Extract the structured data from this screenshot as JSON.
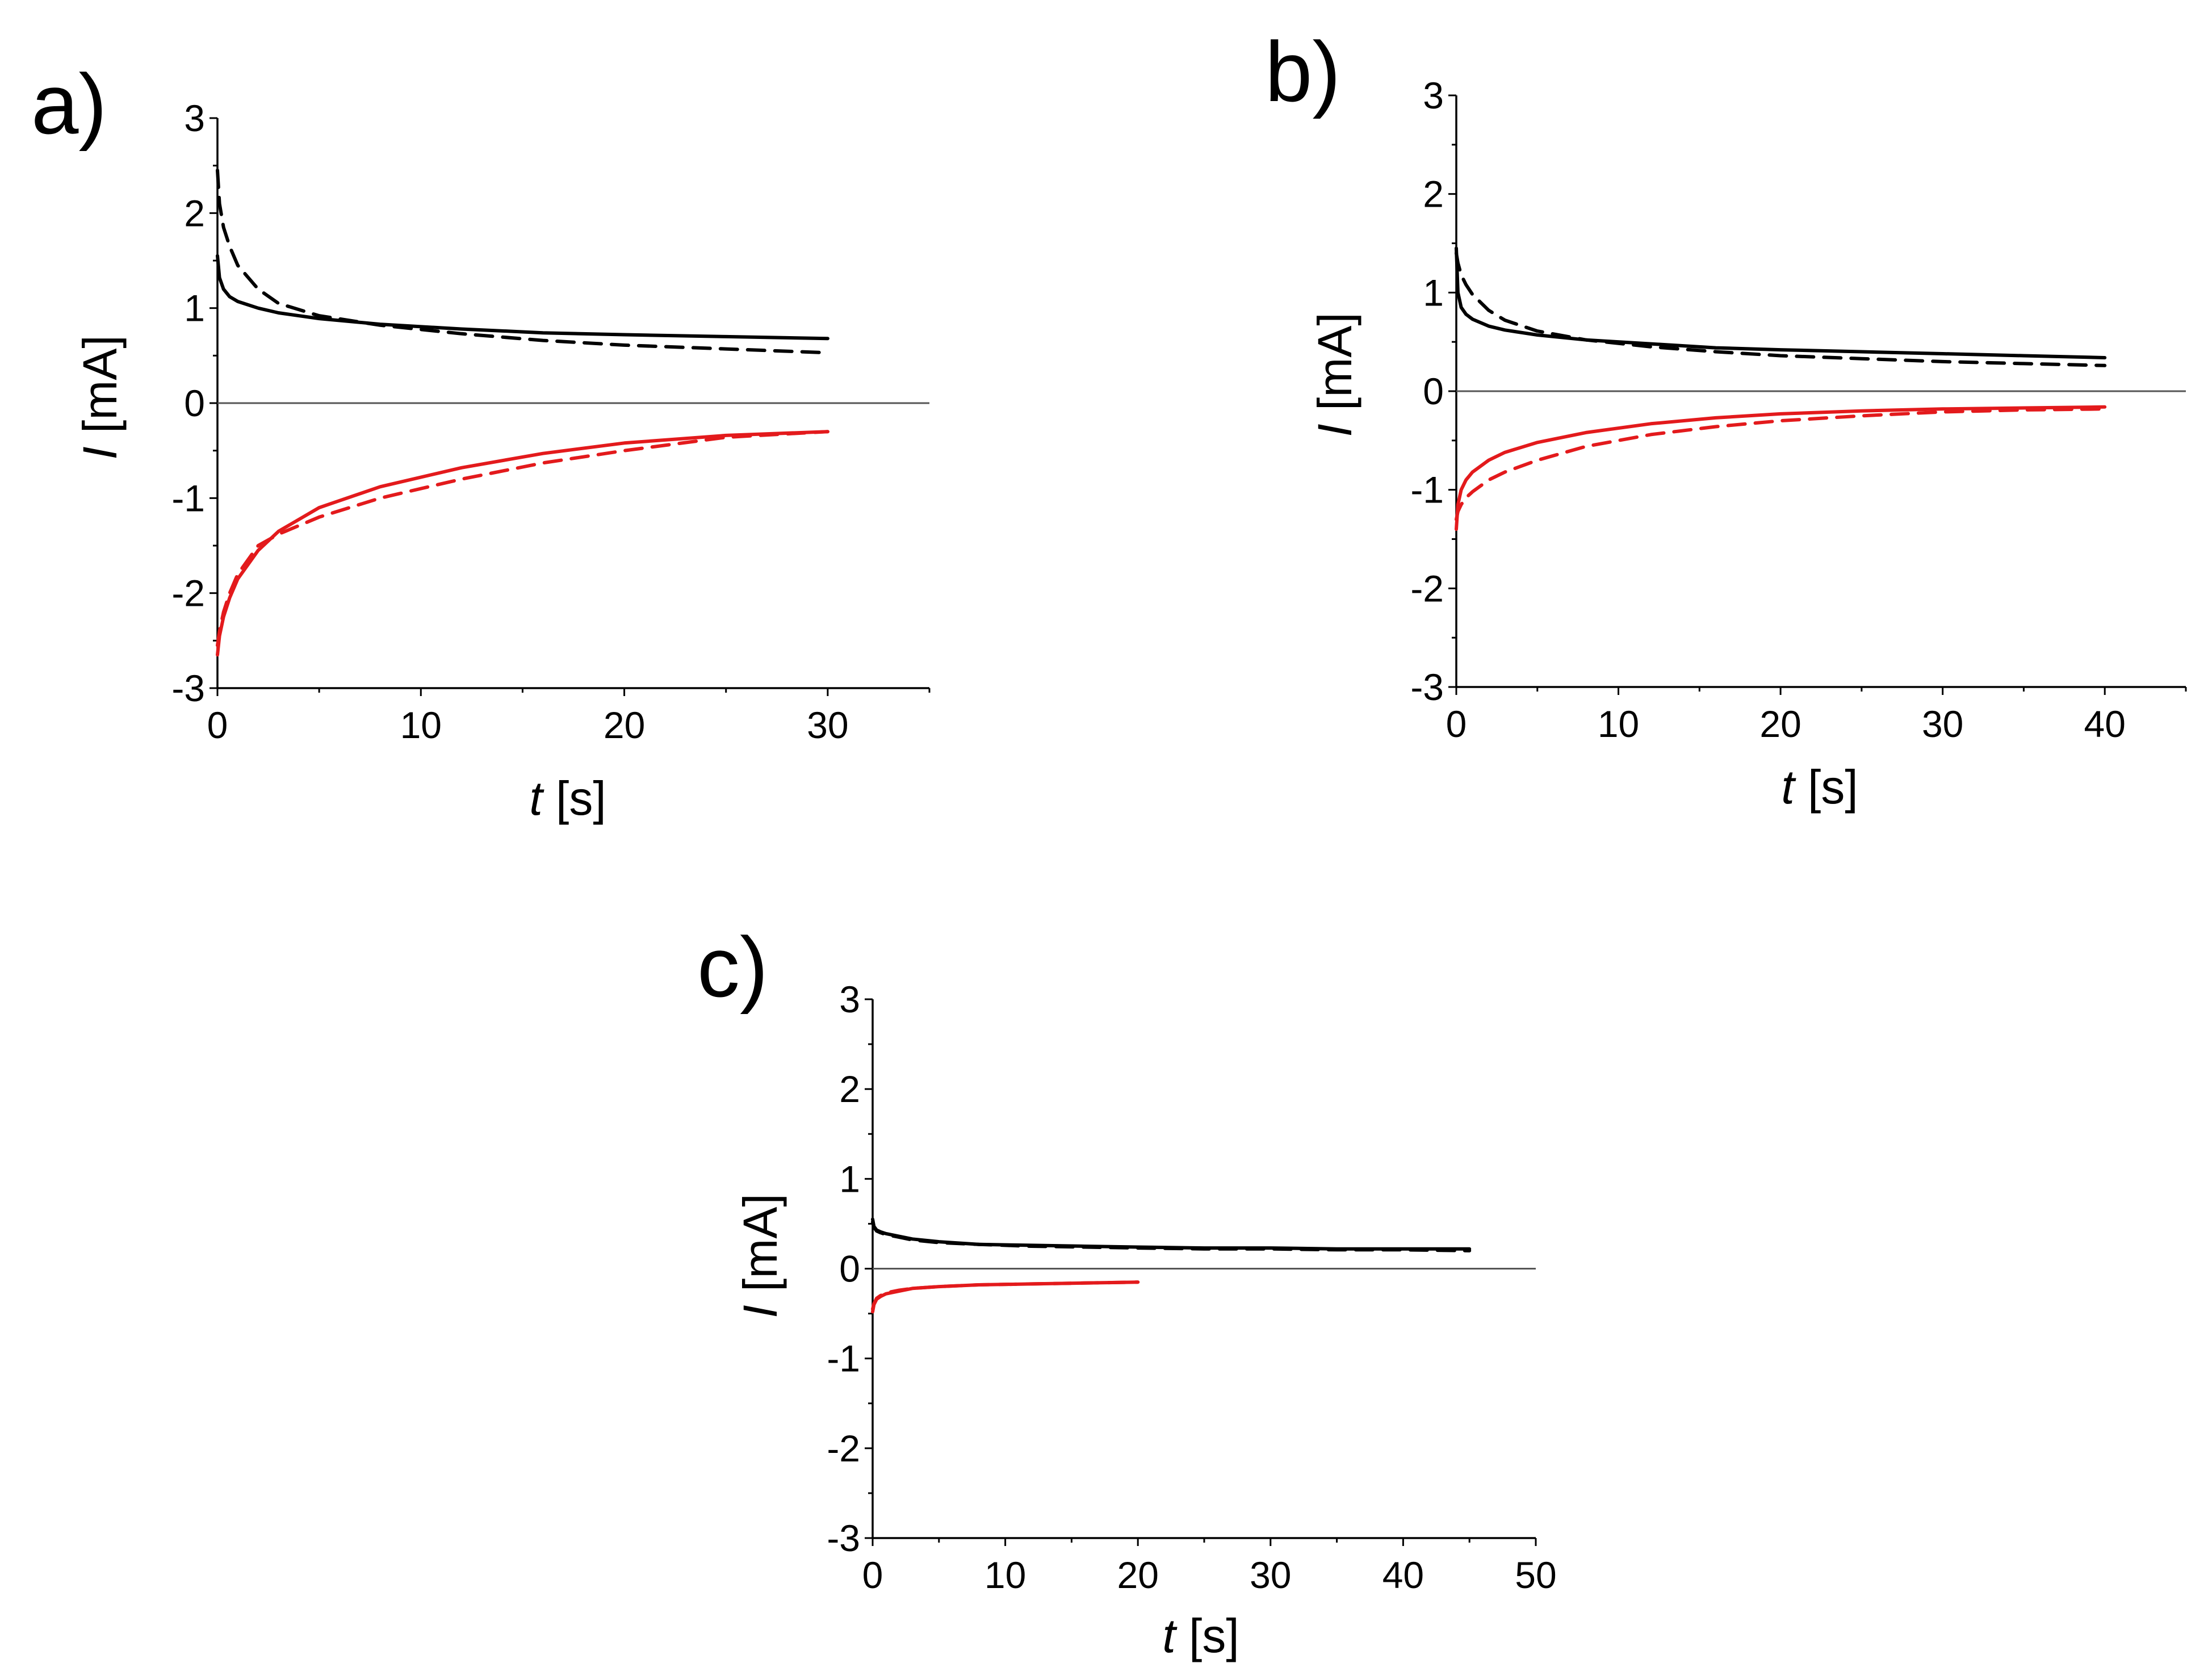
{
  "colors": {
    "black_series": "#000000",
    "red_series": "#e31a1c",
    "axis": "#000000",
    "zero_line": "#555555"
  },
  "chart_data": [
    {
      "type": "line",
      "panel_label": "a)",
      "xlabel_var": "t",
      "xlabel_unit": " [s]",
      "ylabel_var": "I",
      "ylabel_unit": " [mA]",
      "xlim": [
        0,
        35
      ],
      "ylim": [
        -3,
        3
      ],
      "xticks": [
        0,
        10,
        20,
        30
      ],
      "xtick_labels": [
        "0",
        "10",
        "20",
        "30"
      ],
      "yticks": [
        -3,
        -2,
        -1,
        0,
        1,
        2,
        3
      ],
      "ytick_labels": [
        "-3",
        "-2",
        "-1",
        "0",
        "1",
        "2",
        "3"
      ],
      "zero_line": true,
      "series": [
        {
          "name": "black-solid",
          "color": "black",
          "dash": false,
          "x": [
            0,
            0.1,
            0.3,
            0.6,
            1,
            2,
            3,
            5,
            8,
            12,
            16,
            20,
            25,
            30
          ],
          "y": [
            1.55,
            1.32,
            1.2,
            1.12,
            1.07,
            1.0,
            0.95,
            0.89,
            0.83,
            0.78,
            0.74,
            0.72,
            0.7,
            0.68
          ]
        },
        {
          "name": "black-dashed",
          "color": "black",
          "dash": true,
          "x": [
            0,
            0.1,
            0.3,
            0.6,
            1,
            2,
            3,
            5,
            8,
            12,
            16,
            20,
            25,
            30
          ],
          "y": [
            2.45,
            2.1,
            1.85,
            1.65,
            1.45,
            1.2,
            1.05,
            0.92,
            0.82,
            0.73,
            0.66,
            0.61,
            0.57,
            0.53
          ]
        },
        {
          "name": "red-solid",
          "color": "red",
          "dash": false,
          "x": [
            0,
            0.1,
            0.3,
            0.6,
            1,
            2,
            3,
            5,
            8,
            12,
            16,
            20,
            25,
            30
          ],
          "y": [
            -2.65,
            -2.45,
            -2.25,
            -2.05,
            -1.85,
            -1.55,
            -1.35,
            -1.1,
            -0.88,
            -0.68,
            -0.53,
            -0.42,
            -0.34,
            -0.3
          ]
        },
        {
          "name": "red-dashed",
          "color": "red",
          "dash": true,
          "x": [
            0,
            0.1,
            0.3,
            0.6,
            1,
            2,
            3,
            5,
            8,
            12,
            16,
            20,
            25,
            30
          ],
          "y": [
            -2.55,
            -2.4,
            -2.2,
            -2.0,
            -1.8,
            -1.5,
            -1.38,
            -1.2,
            -1.0,
            -0.8,
            -0.63,
            -0.5,
            -0.36,
            -0.3
          ]
        }
      ]
    },
    {
      "type": "line",
      "panel_label": "b)",
      "xlabel_var": "t",
      "xlabel_unit": " [s]",
      "ylabel_var": "I",
      "ylabel_unit": " [mA]",
      "xlim": [
        0,
        45
      ],
      "ylim": [
        -3,
        3
      ],
      "xticks": [
        0,
        10,
        20,
        30,
        40
      ],
      "xtick_labels": [
        "0",
        "10",
        "20",
        "30",
        "40"
      ],
      "yticks": [
        -3,
        -2,
        -1,
        0,
        1,
        2,
        3
      ],
      "ytick_labels": [
        "-3",
        "-2",
        "-1",
        "0",
        "1",
        "2",
        "3"
      ],
      "zero_line": true,
      "series": [
        {
          "name": "black-solid",
          "color": "black",
          "dash": false,
          "x": [
            0,
            0.1,
            0.3,
            0.6,
            1,
            2,
            3,
            5,
            8,
            12,
            16,
            20,
            25,
            30,
            35,
            40
          ],
          "y": [
            1.45,
            1.0,
            0.85,
            0.78,
            0.73,
            0.66,
            0.62,
            0.57,
            0.52,
            0.48,
            0.44,
            0.42,
            0.4,
            0.38,
            0.36,
            0.34
          ]
        },
        {
          "name": "black-dashed",
          "color": "black",
          "dash": true,
          "x": [
            0,
            0.1,
            0.3,
            0.6,
            1,
            2,
            3,
            5,
            8,
            12,
            16,
            20,
            25,
            30,
            35,
            40
          ],
          "y": [
            1.4,
            1.3,
            1.18,
            1.08,
            0.98,
            0.82,
            0.72,
            0.61,
            0.52,
            0.45,
            0.4,
            0.36,
            0.33,
            0.3,
            0.28,
            0.26
          ]
        },
        {
          "name": "red-solid",
          "color": "red",
          "dash": false,
          "x": [
            0,
            0.1,
            0.3,
            0.6,
            1,
            2,
            3,
            5,
            8,
            12,
            16,
            20,
            25,
            30,
            35,
            40
          ],
          "y": [
            -1.4,
            -1.15,
            -1.0,
            -0.9,
            -0.82,
            -0.7,
            -0.62,
            -0.52,
            -0.42,
            -0.33,
            -0.27,
            -0.23,
            -0.2,
            -0.18,
            -0.17,
            -0.16
          ]
        },
        {
          "name": "red-dashed",
          "color": "red",
          "dash": true,
          "x": [
            0,
            0.1,
            0.3,
            0.6,
            1,
            2,
            3,
            5,
            8,
            12,
            16,
            20,
            25,
            30,
            35,
            40
          ],
          "y": [
            -1.3,
            -1.22,
            -1.15,
            -1.08,
            -1.02,
            -0.9,
            -0.82,
            -0.7,
            -0.56,
            -0.44,
            -0.36,
            -0.3,
            -0.25,
            -0.21,
            -0.19,
            -0.18
          ]
        }
      ]
    },
    {
      "type": "line",
      "panel_label": "c)",
      "xlabel_var": "t",
      "xlabel_unit": " [s]",
      "ylabel_var": "I",
      "ylabel_unit": " [mA]",
      "xlim": [
        0,
        50
      ],
      "ylim": [
        -3,
        3
      ],
      "xticks": [
        0,
        10,
        20,
        30,
        40,
        50
      ],
      "xtick_labels": [
        "0",
        "10",
        "20",
        "30",
        "40",
        "50"
      ],
      "yticks": [
        -3,
        -2,
        -1,
        0,
        1,
        2,
        3
      ],
      "ytick_labels": [
        "-3",
        "-2",
        "-1",
        "0",
        "1",
        "2",
        "3"
      ],
      "zero_line": true,
      "series": [
        {
          "name": "black-solid",
          "color": "black",
          "dash": false,
          "x": [
            0,
            0.1,
            0.3,
            0.6,
            1,
            2,
            3,
            5,
            8,
            12,
            16,
            20,
            25,
            30,
            35,
            40,
            45
          ],
          "y": [
            0.55,
            0.47,
            0.43,
            0.41,
            0.39,
            0.36,
            0.33,
            0.3,
            0.27,
            0.26,
            0.25,
            0.24,
            0.23,
            0.23,
            0.22,
            0.22,
            0.22
          ]
        },
        {
          "name": "black-dashed",
          "color": "black",
          "dash": true,
          "x": [
            0,
            0.1,
            0.3,
            0.6,
            1,
            2,
            3,
            5,
            8,
            12,
            16,
            20,
            25,
            30,
            35,
            40,
            45
          ],
          "y": [
            0.52,
            0.46,
            0.42,
            0.4,
            0.38,
            0.35,
            0.32,
            0.29,
            0.27,
            0.25,
            0.24,
            0.23,
            0.22,
            0.22,
            0.21,
            0.21,
            0.2
          ]
        },
        {
          "name": "red-solid",
          "color": "red",
          "dash": false,
          "x": [
            0,
            0.1,
            0.3,
            0.6,
            1,
            2,
            3,
            5,
            8,
            12,
            16,
            20
          ],
          "y": [
            -0.48,
            -0.4,
            -0.34,
            -0.31,
            -0.28,
            -0.25,
            -0.22,
            -0.2,
            -0.18,
            -0.17,
            -0.16,
            -0.15
          ]
        },
        {
          "name": "red-dashed",
          "color": "red",
          "dash": true,
          "x": [
            0,
            0.1,
            0.3,
            0.6,
            1,
            2,
            3,
            5,
            8,
            12,
            16,
            20
          ],
          "y": [
            -0.45,
            -0.39,
            -0.33,
            -0.3,
            -0.27,
            -0.24,
            -0.22,
            -0.2,
            -0.18,
            -0.17,
            -0.16,
            -0.15
          ]
        }
      ]
    }
  ]
}
